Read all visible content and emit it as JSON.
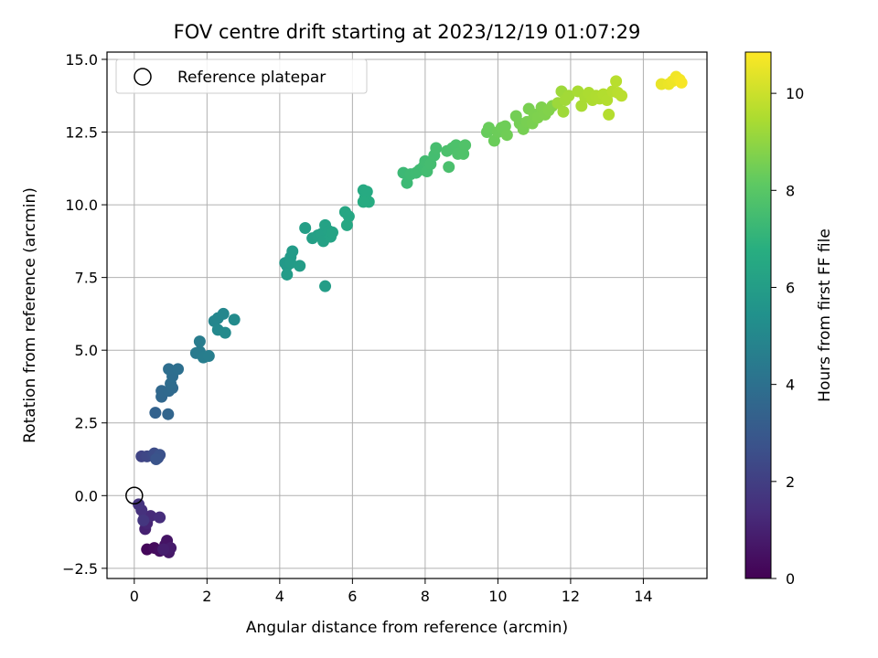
{
  "chart_data": {
    "type": "scatter",
    "title": "FOV centre drift starting at 2023/12/19 01:07:29",
    "xlabel": "Angular distance from reference (arcmin)",
    "ylabel": "Rotation from reference (arcmin)",
    "xlim": [
      -0.75,
      15.75
    ],
    "ylim": [
      -2.85,
      15.25
    ],
    "xticks": [
      0,
      2,
      4,
      6,
      8,
      10,
      12,
      14
    ],
    "yticks": [
      -2.5,
      0.0,
      2.5,
      5.0,
      7.5,
      10.0,
      12.5,
      15.0
    ],
    "xtick_labels": [
      "0",
      "2",
      "4",
      "6",
      "8",
      "10",
      "12",
      "14"
    ],
    "ytick_labels": [
      "−2.5",
      "0.0",
      "2.5",
      "5.0",
      "7.5",
      "10.0",
      "12.5",
      "15.0"
    ],
    "grid": true,
    "colormap": "viridis",
    "legend": {
      "position": "upper-left",
      "entries": [
        {
          "label": "Reference platepar",
          "marker": "open-circle",
          "color": "#000000"
        }
      ]
    },
    "reference_point": {
      "x": 0,
      "y": 0
    },
    "colorbar": {
      "label": "Hours from first FF file",
      "min": 0,
      "max": 10.85,
      "ticks": [
        0,
        2,
        4,
        6,
        8,
        10
      ],
      "tick_labels": [
        "0",
        "2",
        "4",
        "6",
        "8",
        "10"
      ]
    },
    "points": [
      {
        "x": 0.35,
        "y": -1.85,
        "c": 0.2
      },
      {
        "x": 0.55,
        "y": -1.8,
        "c": 0.3
      },
      {
        "x": 0.7,
        "y": -1.9,
        "c": 0.4
      },
      {
        "x": 0.85,
        "y": -1.7,
        "c": 0.5
      },
      {
        "x": 0.9,
        "y": -1.55,
        "c": 0.6
      },
      {
        "x": 0.95,
        "y": -1.95,
        "c": 0.7
      },
      {
        "x": 1.0,
        "y": -1.8,
        "c": 0.8
      },
      {
        "x": 0.8,
        "y": -1.85,
        "c": 0.9
      },
      {
        "x": 0.3,
        "y": -1.15,
        "c": 1.0
      },
      {
        "x": 0.35,
        "y": -0.95,
        "c": 1.1
      },
      {
        "x": 0.28,
        "y": -0.75,
        "c": 1.2
      },
      {
        "x": 0.45,
        "y": -0.7,
        "c": 1.3
      },
      {
        "x": 0.7,
        "y": -0.75,
        "c": 1.4
      },
      {
        "x": 0.2,
        "y": -0.5,
        "c": 1.5
      },
      {
        "x": 0.12,
        "y": -0.3,
        "c": 1.6
      },
      {
        "x": 0.25,
        "y": -0.85,
        "c": 1.7
      },
      {
        "x": 0.2,
        "y": 1.35,
        "c": 2.2
      },
      {
        "x": 0.35,
        "y": 1.35,
        "c": 2.3
      },
      {
        "x": 0.5,
        "y": 1.38,
        "c": 2.4
      },
      {
        "x": 0.55,
        "y": 1.45,
        "c": 2.5
      },
      {
        "x": 0.65,
        "y": 1.3,
        "c": 2.6
      },
      {
        "x": 0.7,
        "y": 1.4,
        "c": 2.7
      },
      {
        "x": 0.6,
        "y": 1.25,
        "c": 2.8
      },
      {
        "x": 0.58,
        "y": 2.85,
        "c": 3.4
      },
      {
        "x": 0.93,
        "y": 2.8,
        "c": 3.5
      },
      {
        "x": 0.75,
        "y": 3.4,
        "c": 3.6
      },
      {
        "x": 0.75,
        "y": 3.6,
        "c": 3.65
      },
      {
        "x": 0.95,
        "y": 3.6,
        "c": 3.7
      },
      {
        "x": 1.05,
        "y": 3.7,
        "c": 3.75
      },
      {
        "x": 1.0,
        "y": 3.85,
        "c": 3.8
      },
      {
        "x": 1.05,
        "y": 4.1,
        "c": 3.85
      },
      {
        "x": 0.95,
        "y": 4.35,
        "c": 3.9
      },
      {
        "x": 1.2,
        "y": 4.35,
        "c": 3.95
      },
      {
        "x": 1.7,
        "y": 4.9,
        "c": 4.4
      },
      {
        "x": 1.8,
        "y": 4.95,
        "c": 4.45
      },
      {
        "x": 1.8,
        "y": 5.3,
        "c": 4.5
      },
      {
        "x": 1.9,
        "y": 4.75,
        "c": 4.55
      },
      {
        "x": 2.05,
        "y": 4.8,
        "c": 4.6
      },
      {
        "x": 2.2,
        "y": 6.0,
        "c": 4.9
      },
      {
        "x": 2.3,
        "y": 6.1,
        "c": 4.95
      },
      {
        "x": 2.45,
        "y": 6.25,
        "c": 5.0
      },
      {
        "x": 2.3,
        "y": 5.7,
        "c": 5.05
      },
      {
        "x": 2.5,
        "y": 5.6,
        "c": 5.1
      },
      {
        "x": 2.75,
        "y": 6.05,
        "c": 5.15
      },
      {
        "x": 4.15,
        "y": 8.0,
        "c": 5.8
      },
      {
        "x": 4.2,
        "y": 7.9,
        "c": 5.82
      },
      {
        "x": 4.3,
        "y": 8.2,
        "c": 5.85
      },
      {
        "x": 4.35,
        "y": 8.4,
        "c": 5.88
      },
      {
        "x": 4.3,
        "y": 8.0,
        "c": 5.9
      },
      {
        "x": 4.2,
        "y": 7.6,
        "c": 5.92
      },
      {
        "x": 4.55,
        "y": 7.9,
        "c": 5.95
      },
      {
        "x": 5.25,
        "y": 7.2,
        "c": 6.0
      },
      {
        "x": 4.7,
        "y": 9.2,
        "c": 6.05
      },
      {
        "x": 4.9,
        "y": 8.85,
        "c": 6.1
      },
      {
        "x": 5.05,
        "y": 8.95,
        "c": 6.12
      },
      {
        "x": 5.15,
        "y": 9.0,
        "c": 6.15
      },
      {
        "x": 5.2,
        "y": 8.75,
        "c": 6.18
      },
      {
        "x": 5.25,
        "y": 9.3,
        "c": 6.2
      },
      {
        "x": 5.35,
        "y": 9.1,
        "c": 6.22
      },
      {
        "x": 5.4,
        "y": 8.9,
        "c": 6.25
      },
      {
        "x": 5.45,
        "y": 9.05,
        "c": 6.28
      },
      {
        "x": 5.8,
        "y": 9.75,
        "c": 6.4
      },
      {
        "x": 5.9,
        "y": 9.6,
        "c": 6.42
      },
      {
        "x": 5.85,
        "y": 9.3,
        "c": 6.45
      },
      {
        "x": 6.3,
        "y": 10.5,
        "c": 6.55
      },
      {
        "x": 6.35,
        "y": 10.25,
        "c": 6.58
      },
      {
        "x": 6.4,
        "y": 10.45,
        "c": 6.6
      },
      {
        "x": 6.45,
        "y": 10.1,
        "c": 6.62
      },
      {
        "x": 6.3,
        "y": 10.1,
        "c": 6.65
      },
      {
        "x": 7.4,
        "y": 11.1,
        "c": 7.3
      },
      {
        "x": 7.5,
        "y": 10.75,
        "c": 7.32
      },
      {
        "x": 7.6,
        "y": 11.05,
        "c": 7.35
      },
      {
        "x": 7.75,
        "y": 11.1,
        "c": 7.38
      },
      {
        "x": 7.85,
        "y": 11.2,
        "c": 7.4
      },
      {
        "x": 7.95,
        "y": 11.3,
        "c": 7.42
      },
      {
        "x": 8.0,
        "y": 11.5,
        "c": 7.45
      },
      {
        "x": 8.05,
        "y": 11.15,
        "c": 7.48
      },
      {
        "x": 8.15,
        "y": 11.4,
        "c": 7.5
      },
      {
        "x": 8.25,
        "y": 11.7,
        "c": 7.52
      },
      {
        "x": 8.3,
        "y": 11.95,
        "c": 7.55
      },
      {
        "x": 8.65,
        "y": 11.3,
        "c": 7.65
      },
      {
        "x": 8.6,
        "y": 11.85,
        "c": 7.68
      },
      {
        "x": 8.75,
        "y": 11.95,
        "c": 7.7
      },
      {
        "x": 8.85,
        "y": 12.05,
        "c": 7.72
      },
      {
        "x": 8.9,
        "y": 11.75,
        "c": 7.75
      },
      {
        "x": 9.05,
        "y": 11.75,
        "c": 7.78
      },
      {
        "x": 9.1,
        "y": 12.05,
        "c": 7.8
      },
      {
        "x": 9.7,
        "y": 12.5,
        "c": 8.3
      },
      {
        "x": 9.75,
        "y": 12.65,
        "c": 8.32
      },
      {
        "x": 9.9,
        "y": 12.2,
        "c": 8.35
      },
      {
        "x": 10.0,
        "y": 12.5,
        "c": 8.38
      },
      {
        "x": 10.1,
        "y": 12.65,
        "c": 8.4
      },
      {
        "x": 10.2,
        "y": 12.7,
        "c": 8.42
      },
      {
        "x": 10.25,
        "y": 12.4,
        "c": 8.45
      },
      {
        "x": 10.5,
        "y": 13.05,
        "c": 8.5
      },
      {
        "x": 10.6,
        "y": 12.8,
        "c": 8.52
      },
      {
        "x": 10.7,
        "y": 12.6,
        "c": 8.55
      },
      {
        "x": 10.8,
        "y": 12.85,
        "c": 8.58
      },
      {
        "x": 10.85,
        "y": 13.3,
        "c": 8.6
      },
      {
        "x": 10.95,
        "y": 12.8,
        "c": 8.62
      },
      {
        "x": 11.0,
        "y": 13.1,
        "c": 8.65
      },
      {
        "x": 11.1,
        "y": 13.0,
        "c": 8.68
      },
      {
        "x": 11.2,
        "y": 13.35,
        "c": 8.7
      },
      {
        "x": 11.3,
        "y": 13.1,
        "c": 8.72
      },
      {
        "x": 11.4,
        "y": 13.25,
        "c": 8.75
      },
      {
        "x": 11.5,
        "y": 13.4,
        "c": 8.78
      },
      {
        "x": 11.65,
        "y": 13.5,
        "c": 9.2
      },
      {
        "x": 11.75,
        "y": 13.9,
        "c": 9.22
      },
      {
        "x": 11.8,
        "y": 13.2,
        "c": 9.25
      },
      {
        "x": 11.85,
        "y": 13.6,
        "c": 9.28
      },
      {
        "x": 11.95,
        "y": 13.75,
        "c": 9.3
      },
      {
        "x": 12.2,
        "y": 13.9,
        "c": 9.4
      },
      {
        "x": 12.3,
        "y": 13.4,
        "c": 9.42
      },
      {
        "x": 12.4,
        "y": 13.7,
        "c": 9.45
      },
      {
        "x": 12.5,
        "y": 13.85,
        "c": 9.48
      },
      {
        "x": 12.6,
        "y": 13.6,
        "c": 9.5
      },
      {
        "x": 12.7,
        "y": 13.75,
        "c": 9.52
      },
      {
        "x": 12.8,
        "y": 13.65,
        "c": 9.55
      },
      {
        "x": 12.9,
        "y": 13.8,
        "c": 9.58
      },
      {
        "x": 13.0,
        "y": 13.6,
        "c": 9.6
      },
      {
        "x": 13.05,
        "y": 13.1,
        "c": 9.62
      },
      {
        "x": 13.15,
        "y": 13.9,
        "c": 9.65
      },
      {
        "x": 13.25,
        "y": 14.25,
        "c": 9.68
      },
      {
        "x": 13.3,
        "y": 13.85,
        "c": 9.7
      },
      {
        "x": 13.4,
        "y": 13.75,
        "c": 9.72
      },
      {
        "x": 14.5,
        "y": 14.15,
        "c": 10.5
      },
      {
        "x": 14.7,
        "y": 14.15,
        "c": 10.55
      },
      {
        "x": 14.8,
        "y": 14.25,
        "c": 10.6
      },
      {
        "x": 14.9,
        "y": 14.4,
        "c": 10.65
      },
      {
        "x": 15.0,
        "y": 14.3,
        "c": 10.7
      },
      {
        "x": 15.05,
        "y": 14.2,
        "c": 10.75
      }
    ]
  }
}
